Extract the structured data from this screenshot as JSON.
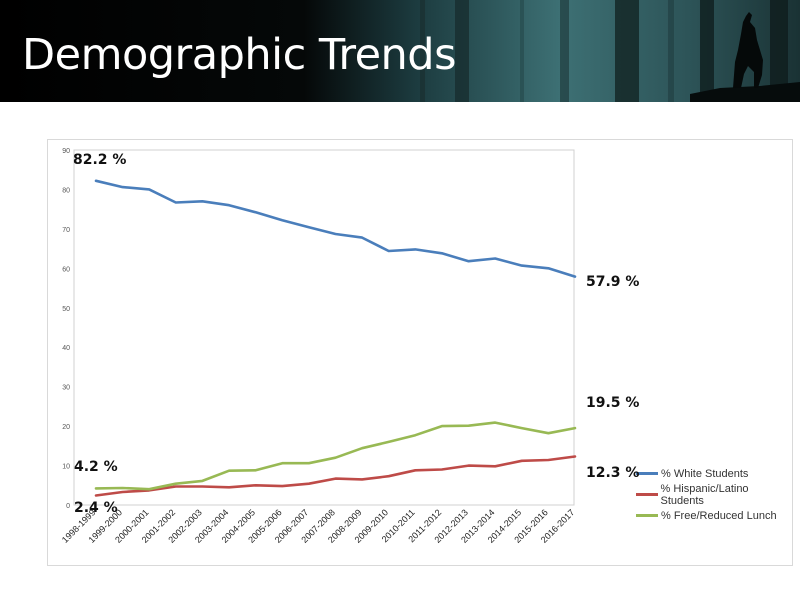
{
  "slide": {
    "title": "Demographic Trends"
  },
  "chart_data": {
    "type": "line",
    "categories": [
      "1998-1999",
      "1999-2000",
      "2000-2001",
      "2001-2002",
      "2002-2003",
      "2003-2004",
      "2004-2005",
      "2005-2006",
      "2006-2007",
      "2007-2008",
      "2008-2009",
      "2009-2010",
      "2010-2011",
      "2011-2012",
      "2012-2013",
      "2013-2014",
      "2014-2015",
      "2015-2016",
      "2016-2017"
    ],
    "ylim": [
      0,
      90
    ],
    "yticks": [
      "0",
      "10",
      "20",
      "30",
      "40",
      "50",
      "60",
      "70",
      "80",
      "90"
    ],
    "grid": false,
    "legend_position": "right",
    "series": [
      {
        "name": "% White Students",
        "color": "#4a7ebb",
        "values": [
          82.2,
          80.6,
          80.0,
          76.7,
          77.0,
          76.0,
          74.2,
          72.2,
          70.4,
          68.7,
          67.8,
          64.4,
          64.8,
          63.8,
          61.8,
          62.5,
          60.7,
          60.0,
          57.9
        ]
      },
      {
        "name": "% Hispanic/Latino Students",
        "color": "#be4b48",
        "values": [
          2.4,
          3.3,
          3.7,
          4.7,
          4.7,
          4.5,
          5.0,
          4.8,
          5.4,
          6.7,
          6.5,
          7.3,
          8.8,
          9.0,
          10.0,
          9.8,
          11.2,
          11.4,
          12.3
        ]
      },
      {
        "name": "% Free/Reduced Lunch",
        "color": "#98b954",
        "values": [
          4.2,
          4.3,
          4.0,
          5.4,
          6.1,
          8.7,
          8.8,
          10.6,
          10.6,
          12.0,
          14.4,
          16.0,
          17.7,
          20.0,
          20.1,
          20.9,
          19.5,
          18.2,
          19.5
        ]
      }
    ],
    "annotations": [
      {
        "text": "82.2 %",
        "series": "% White Students",
        "category": "1998-1999"
      },
      {
        "text": "57.9 %",
        "series": "% White Students",
        "category": "2016-2017"
      },
      {
        "text": "19.5 %",
        "series": "% Free/Reduced Lunch",
        "category": "2016-2017"
      },
      {
        "text": "12.3 %",
        "series": "% Hispanic/Latino Students",
        "category": "2016-2017"
      },
      {
        "text": "4.2 %",
        "series": "% Free/Reduced Lunch",
        "category": "1998-1999"
      },
      {
        "text": "2.4 %",
        "series": "% Hispanic/Latino Students",
        "category": "1998-1999"
      }
    ]
  }
}
